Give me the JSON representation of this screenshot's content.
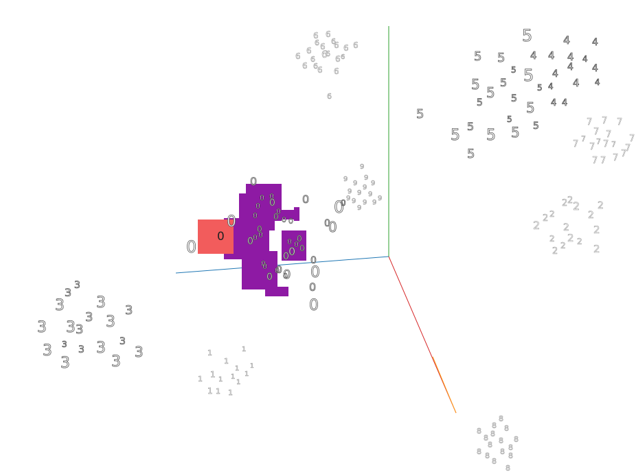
{
  "view": {
    "type": "3d-embedding-projector",
    "colors": {
      "background": "#ffffff",
      "axis_x": "#1f77b4",
      "axis_y": "#2ca02c",
      "axis_z": "#d62728",
      "axis_z_tail": "#ff9f1c",
      "selection": "#8e1aa4",
      "highlight": "#f25c5c"
    }
  },
  "clusters": [
    {
      "label": "0",
      "labels_visible": [
        "0",
        "0",
        "0",
        "0",
        "0",
        "0",
        "0",
        "0",
        "0",
        "0",
        "0",
        "0",
        "0",
        "0",
        "0",
        "0",
        "0",
        "0",
        "0",
        "0",
        "0",
        "0",
        "0"
      ]
    },
    {
      "label": "1",
      "labels_visible": [
        "1",
        "1",
        "1",
        "1",
        "1",
        "1",
        "1",
        "1",
        "1",
        "1",
        "1",
        "1",
        "1",
        "1"
      ]
    },
    {
      "label": "2",
      "labels_visible": [
        "2",
        "2",
        "2",
        "2",
        "2",
        "2",
        "2",
        "2",
        "2",
        "2",
        "2",
        "2",
        "2",
        "2",
        "2",
        "2"
      ]
    },
    {
      "label": "3",
      "labels_visible": [
        "3",
        "3",
        "3",
        "3",
        "3",
        "3",
        "3",
        "3",
        "3",
        "3",
        "3",
        "3",
        "3",
        "3",
        "3",
        "3",
        "3",
        "3"
      ]
    },
    {
      "label": "4",
      "labels_visible": [
        "4",
        "4",
        "4",
        "4",
        "4",
        "4",
        "4",
        "4",
        "4",
        "4",
        "4",
        "4",
        "4",
        "4"
      ]
    },
    {
      "label": "5",
      "labels_visible": [
        "5",
        "5",
        "5",
        "5",
        "5",
        "5",
        "5",
        "5",
        "5",
        "5",
        "5",
        "5",
        "5",
        "5",
        "5",
        "5",
        "5",
        "5",
        "5",
        "5"
      ]
    },
    {
      "label": "6",
      "labels_visible": [
        "6",
        "6",
        "6",
        "6",
        "6",
        "6",
        "6",
        "6",
        "6",
        "6",
        "6",
        "6",
        "6",
        "6",
        "6",
        "6",
        "6",
        "6",
        "6",
        "6"
      ]
    },
    {
      "label": "7",
      "labels_visible": [
        "7",
        "7",
        "7",
        "7",
        "7",
        "7",
        "7",
        "7",
        "7",
        "7",
        "7",
        "7",
        "7",
        "7",
        "7",
        "7",
        "7"
      ]
    },
    {
      "label": "8",
      "labels_visible": [
        "8",
        "8",
        "8",
        "8",
        "8",
        "8",
        "8",
        "8",
        "8",
        "8",
        "8",
        "8",
        "8",
        "8",
        "8",
        "8"
      ]
    },
    {
      "label": "9",
      "labels_visible": [
        "9",
        "9",
        "9",
        "9",
        "9",
        "9",
        "9",
        "9",
        "9",
        "9",
        "9",
        "9",
        "9",
        "9",
        "9"
      ]
    }
  ],
  "selection": {
    "label": "0",
    "highlighted_label": "0",
    "selected_labels": [
      "0",
      "0",
      "0",
      "0",
      "0",
      "0",
      "0",
      "0",
      "0",
      "0",
      "0",
      "0",
      "0",
      "0",
      "0"
    ]
  }
}
